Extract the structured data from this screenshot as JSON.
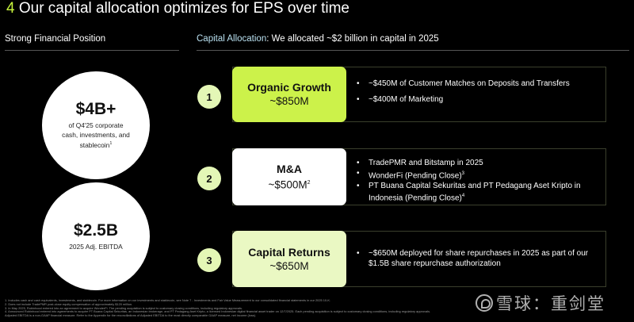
{
  "header": {
    "number": "4",
    "title": "Our capital allocation optimizes for EPS over time"
  },
  "left": {
    "heading": "Strong Financial Position",
    "stat1": {
      "value": "$4B+",
      "line1": "of Q4'25 corporate",
      "line2": "cash, investments, and",
      "line3": "stablecoin",
      "sup": "1"
    },
    "stat2": {
      "value": "$2.5B",
      "label": "2025 Adj. EBITDA"
    }
  },
  "right": {
    "heading_key": "Capital Allocation",
    "heading_rest": ": We allocated ~$2 billion in capital in 2025",
    "items": [
      {
        "number": "1",
        "title": "Organic Growth",
        "amount": "~$850M",
        "bullets": [
          "~$450M of Customer Matches on Deposits and Transfers",
          "~$400M of Marketing"
        ]
      },
      {
        "number": "2",
        "title": "M&A",
        "amount": "~$500M",
        "amount_sup": "2",
        "bullets": [
          "TradePMR and Bitstamp in 2025",
          "WonderFi (Pending Close)",
          "PT Buana Capital Sekuritas and PT Pedagang Aset Kripto in Indonesia (Pending Close)"
        ],
        "bullet_sups": [
          "",
          "3",
          "4"
        ]
      },
      {
        "number": "3",
        "title": "Capital Returns",
        "amount": "~$650M",
        "bullets": [
          "~$650M deployed for share repurchases in 2025 as part of our $1.5B share repurchase authorization"
        ]
      }
    ]
  },
  "footnotes": [
    "1. Includes cash and cash equivalents, investments, and stablecoin. For more information on our investments and stablecoin, see Note 7 - Investments and Fair Value Measurement to our consolidated financial statements in our 2025 10-K.",
    "2. Does not include TradePMR post-close equity compensation of approximately $120 million.",
    "3. In May 2025, Robinhood entered into an agreement to acquire WonderFi. The pending acquisition is subject to customary closing conditions, including regulatory approvals.",
    "4. Announced Robinhood entered into agreements to acquire PT Buana Capital Sekuritas, an Indonesian brokerage, and PT Pedagang Aset Kripto, a licensed Indonesian digital financial asset trader on 12/7/2025. Each pending acquisition is subject to customary closing conditions, including regulatory approvals.",
    "Adjusted EBITDA is a non-GAAP financial measure. Refer to the Appendix for the reconciliations of Adjusted EBITDA to the most directly comparable GAAP measure, net income (loss)."
  ],
  "watermark": "雪球：重剑堂",
  "colors": {
    "accent": "#ccf24a",
    "accent_light": "#eaf8c3",
    "number_bg": "#e4f7b6",
    "heading_blue": "#b9e0f0"
  }
}
